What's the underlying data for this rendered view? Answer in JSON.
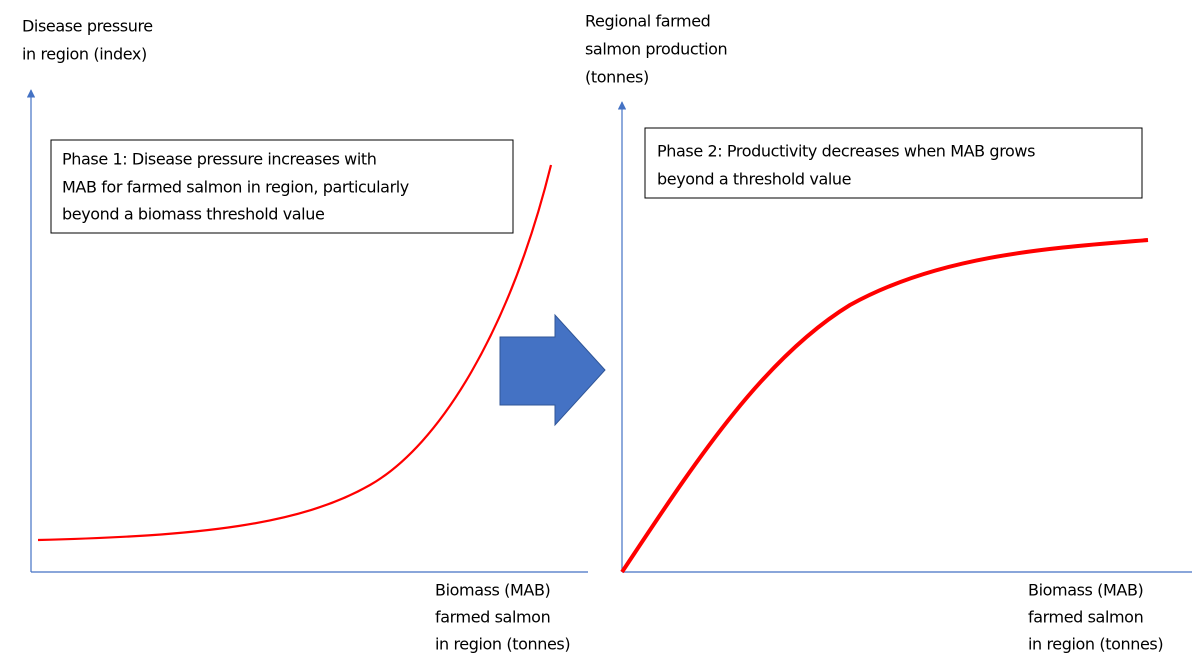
{
  "left_panel": {
    "y_axis_label": [
      "Disease pressure",
      "in region (index)"
    ],
    "x_axis_label": [
      "Biomass (MAB)",
      "farmed salmon",
      "in region (tonnes)"
    ],
    "annotation": [
      "Phase 1: Disease pressure increases with",
      "MAB for farmed salmon in region, particularly",
      "beyond a biomass threshold value"
    ]
  },
  "right_panel": {
    "y_axis_label": [
      "Regional farmed",
      "salmon production",
      "(tonnes)"
    ],
    "x_axis_label": [
      "Biomass (MAB)",
      "farmed salmon",
      "in region (tonnes)"
    ],
    "annotation": [
      "Phase 2: Productivity decreases when MAB grows",
      "beyond a threshold value"
    ]
  }
}
